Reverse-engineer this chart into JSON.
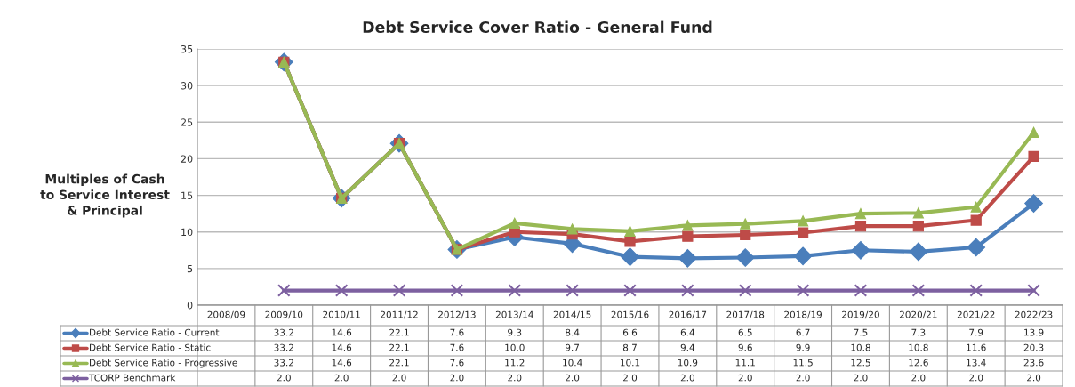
{
  "chart_data": {
    "type": "line",
    "title": "Debt Service Cover Ratio - General Fund",
    "ylabel": "Multiples of Cash\nto Service Interest\n& Principal",
    "categories": [
      "2008/09",
      "2009/10",
      "2010/11",
      "2011/12",
      "2012/13",
      "2013/14",
      "2014/15",
      "2015/16",
      "2016/17",
      "2017/18",
      "2018/19",
      "2019/20",
      "2020/21",
      "2021/22",
      "2022/23"
    ],
    "series": [
      {
        "name": "Debt Service Ratio - Current",
        "color": "#4a7ebb",
        "marker": "diamond",
        "values": [
          null,
          33.2,
          14.6,
          22.1,
          7.6,
          9.3,
          8.4,
          6.6,
          6.4,
          6.5,
          6.7,
          7.5,
          7.3,
          7.9,
          13.9
        ],
        "value_labels": [
          null,
          "33.2",
          "14.6",
          "22.1",
          "7.6",
          "9.3",
          "8.4",
          "6.6",
          "6.4",
          "6.5",
          "6.7",
          "7.5",
          "7.3",
          "7.9",
          "13.9"
        ]
      },
      {
        "name": "Debt Service Ratio - Static",
        "color": "#be4b48",
        "marker": "square",
        "values": [
          null,
          33.2,
          14.6,
          22.1,
          7.6,
          10.0,
          9.7,
          8.7,
          9.4,
          9.6,
          9.9,
          10.8,
          10.8,
          11.6,
          20.3
        ],
        "value_labels": [
          null,
          "33.2",
          "14.6",
          "22.1",
          "7.6",
          "10.0",
          "9.7",
          "8.7",
          "9.4",
          "9.6",
          "9.9",
          "10.8",
          "10.8",
          "11.6",
          "20.3"
        ]
      },
      {
        "name": "Debt Service Ratio - Progressive",
        "color": "#98b954",
        "marker": "triangle",
        "values": [
          null,
          33.2,
          14.6,
          22.1,
          7.6,
          11.2,
          10.4,
          10.1,
          10.9,
          11.1,
          11.5,
          12.5,
          12.6,
          13.4,
          23.6
        ],
        "value_labels": [
          null,
          "33.2",
          "14.6",
          "22.1",
          "7.6",
          "11.2",
          "10.4",
          "10.1",
          "10.9",
          "11.1",
          "11.5",
          "12.5",
          "12.6",
          "13.4",
          "23.6"
        ]
      },
      {
        "name": "TCORP Benchmark",
        "color": "#7d60a0",
        "marker": "cross",
        "values": [
          null,
          2.0,
          2.0,
          2.0,
          2.0,
          2.0,
          2.0,
          2.0,
          2.0,
          2.0,
          2.0,
          2.0,
          2.0,
          2.0,
          2.0
        ],
        "value_labels": [
          null,
          "2.0",
          "2.0",
          "2.0",
          "2.0",
          "2.0",
          "2.0",
          "2.0",
          "2.0",
          "2.0",
          "2.0",
          "2.0",
          "2.0",
          "2.0",
          "2.0"
        ]
      }
    ],
    "ylim": [
      0,
      35
    ],
    "yticks": [
      0,
      5,
      10,
      15,
      20,
      25,
      30,
      35
    ],
    "grid": "y",
    "legend": "bottom"
  }
}
